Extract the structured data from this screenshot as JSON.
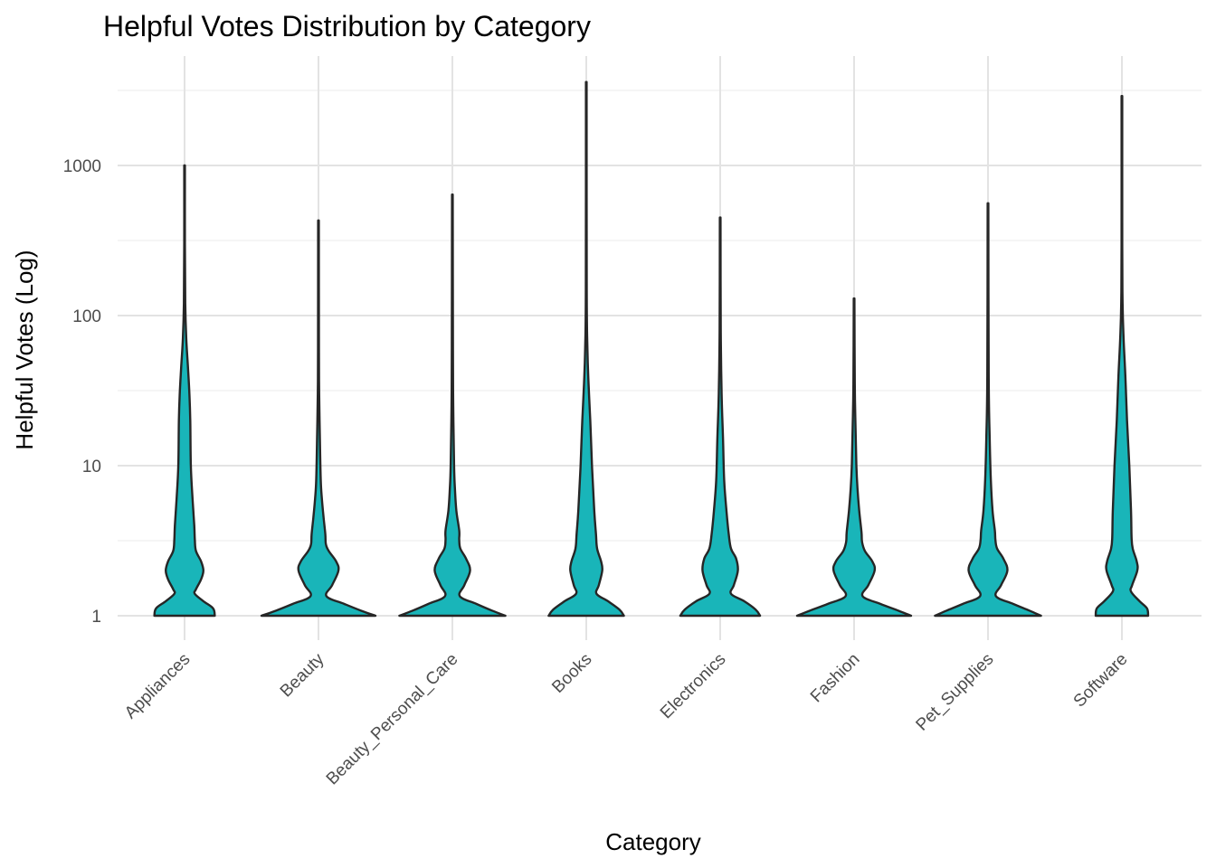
{
  "chart_data": {
    "type": "violin",
    "title": "Helpful Votes Distribution by Category",
    "xlabel": "Category",
    "ylabel": "Helpful Votes (Log)",
    "y_scale": "log10",
    "ylim": [
      0.85,
      4900
    ],
    "y_ticks": [
      1,
      10,
      100,
      1000
    ],
    "y_tick_labels": [
      "1",
      "10",
      "100",
      "1000"
    ],
    "grid": true,
    "legend": "none",
    "fill_color": "#19B5B9",
    "outline_color": "#262626",
    "categories": [
      "Appliances",
      "Beauty",
      "Beauty_Personal_Care",
      "Books",
      "Electronics",
      "Fashion",
      "Pet_Supplies",
      "Software"
    ],
    "series": [
      {
        "category": "Appliances",
        "max": 1000,
        "density": [
          [
            1,
            0.53
          ],
          [
            1.12,
            0.5
          ],
          [
            1.25,
            0.33
          ],
          [
            1.4,
            0.18
          ],
          [
            1.5,
            0.2
          ],
          [
            1.75,
            0.29
          ],
          [
            2,
            0.33
          ],
          [
            2.3,
            0.29
          ],
          [
            2.7,
            0.2
          ],
          [
            3.2,
            0.18
          ],
          [
            4,
            0.17
          ],
          [
            6,
            0.14
          ],
          [
            10,
            0.11
          ],
          [
            20,
            0.1
          ],
          [
            30,
            0.085
          ],
          [
            45,
            0.06
          ],
          [
            70,
            0.03
          ],
          [
            120,
            0.012
          ],
          [
            300,
            0.006
          ],
          [
            1000,
            0.006
          ]
        ]
      },
      {
        "category": "Beauty",
        "max": 430,
        "density": [
          [
            1,
            1.0
          ],
          [
            1.08,
            0.75
          ],
          [
            1.2,
            0.45
          ],
          [
            1.35,
            0.14
          ],
          [
            1.6,
            0.24
          ],
          [
            2,
            0.35
          ],
          [
            2.3,
            0.31
          ],
          [
            2.7,
            0.18
          ],
          [
            3,
            0.13
          ],
          [
            3.5,
            0.12
          ],
          [
            4.5,
            0.09
          ],
          [
            6,
            0.06
          ],
          [
            8,
            0.04
          ],
          [
            15,
            0.025
          ],
          [
            30,
            0.012
          ],
          [
            60,
            0.008
          ],
          [
            430,
            0.006
          ]
        ]
      },
      {
        "category": "Beauty_Personal_Care",
        "max": 640,
        "density": [
          [
            1,
            0.93
          ],
          [
            1.08,
            0.7
          ],
          [
            1.2,
            0.42
          ],
          [
            1.35,
            0.13
          ],
          [
            1.6,
            0.21
          ],
          [
            2,
            0.31
          ],
          [
            2.4,
            0.24
          ],
          [
            2.8,
            0.14
          ],
          [
            3.2,
            0.12
          ],
          [
            3.7,
            0.12
          ],
          [
            5,
            0.07
          ],
          [
            7,
            0.045
          ],
          [
            10,
            0.03
          ],
          [
            25,
            0.015
          ],
          [
            60,
            0.01
          ],
          [
            640,
            0.006
          ]
        ]
      },
      {
        "category": "Books",
        "max": 3600,
        "density": [
          [
            1,
            0.66
          ],
          [
            1.1,
            0.58
          ],
          [
            1.25,
            0.38
          ],
          [
            1.4,
            0.18
          ],
          [
            1.6,
            0.22
          ],
          [
            2,
            0.28
          ],
          [
            2.3,
            0.26
          ],
          [
            2.8,
            0.19
          ],
          [
            3.5,
            0.17
          ],
          [
            5,
            0.14
          ],
          [
            10,
            0.1
          ],
          [
            20,
            0.07
          ],
          [
            35,
            0.04
          ],
          [
            60,
            0.02
          ],
          [
            150,
            0.008
          ],
          [
            3600,
            0.006
          ]
        ]
      },
      {
        "category": "Electronics",
        "max": 450,
        "density": [
          [
            1,
            0.7
          ],
          [
            1.1,
            0.62
          ],
          [
            1.25,
            0.42
          ],
          [
            1.4,
            0.19
          ],
          [
            1.6,
            0.24
          ],
          [
            2,
            0.31
          ],
          [
            2.4,
            0.28
          ],
          [
            2.8,
            0.19
          ],
          [
            3.5,
            0.15
          ],
          [
            5,
            0.11
          ],
          [
            8,
            0.07
          ],
          [
            15,
            0.05
          ],
          [
            30,
            0.025
          ],
          [
            80,
            0.01
          ],
          [
            450,
            0.006
          ]
        ]
      },
      {
        "category": "Fashion",
        "max": 130,
        "density": [
          [
            1,
            1.0
          ],
          [
            1.08,
            0.78
          ],
          [
            1.2,
            0.46
          ],
          [
            1.35,
            0.15
          ],
          [
            1.6,
            0.25
          ],
          [
            2,
            0.36
          ],
          [
            2.3,
            0.32
          ],
          [
            2.7,
            0.19
          ],
          [
            3.1,
            0.14
          ],
          [
            3.6,
            0.13
          ],
          [
            5,
            0.09
          ],
          [
            7,
            0.06
          ],
          [
            10,
            0.04
          ],
          [
            18,
            0.025
          ],
          [
            35,
            0.012
          ],
          [
            130,
            0.006
          ]
        ]
      },
      {
        "category": "Pet_Supplies",
        "max": 560,
        "density": [
          [
            1,
            0.93
          ],
          [
            1.08,
            0.73
          ],
          [
            1.2,
            0.44
          ],
          [
            1.35,
            0.14
          ],
          [
            1.6,
            0.23
          ],
          [
            2,
            0.34
          ],
          [
            2.4,
            0.27
          ],
          [
            2.8,
            0.16
          ],
          [
            3.2,
            0.13
          ],
          [
            3.7,
            0.12
          ],
          [
            5,
            0.08
          ],
          [
            8,
            0.05
          ],
          [
            15,
            0.03
          ],
          [
            40,
            0.012
          ],
          [
            560,
            0.006
          ]
        ]
      },
      {
        "category": "Software",
        "max": 2900,
        "density": [
          [
            1,
            0.46
          ],
          [
            1.12,
            0.44
          ],
          [
            1.25,
            0.31
          ],
          [
            1.45,
            0.16
          ],
          [
            1.6,
            0.18
          ],
          [
            2,
            0.27
          ],
          [
            2.3,
            0.26
          ],
          [
            2.8,
            0.19
          ],
          [
            3.3,
            0.17
          ],
          [
            5,
            0.16
          ],
          [
            10,
            0.13
          ],
          [
            20,
            0.09
          ],
          [
            40,
            0.06
          ],
          [
            70,
            0.03
          ],
          [
            120,
            0.012
          ],
          [
            300,
            0.006
          ],
          [
            2900,
            0.006
          ]
        ]
      }
    ]
  }
}
